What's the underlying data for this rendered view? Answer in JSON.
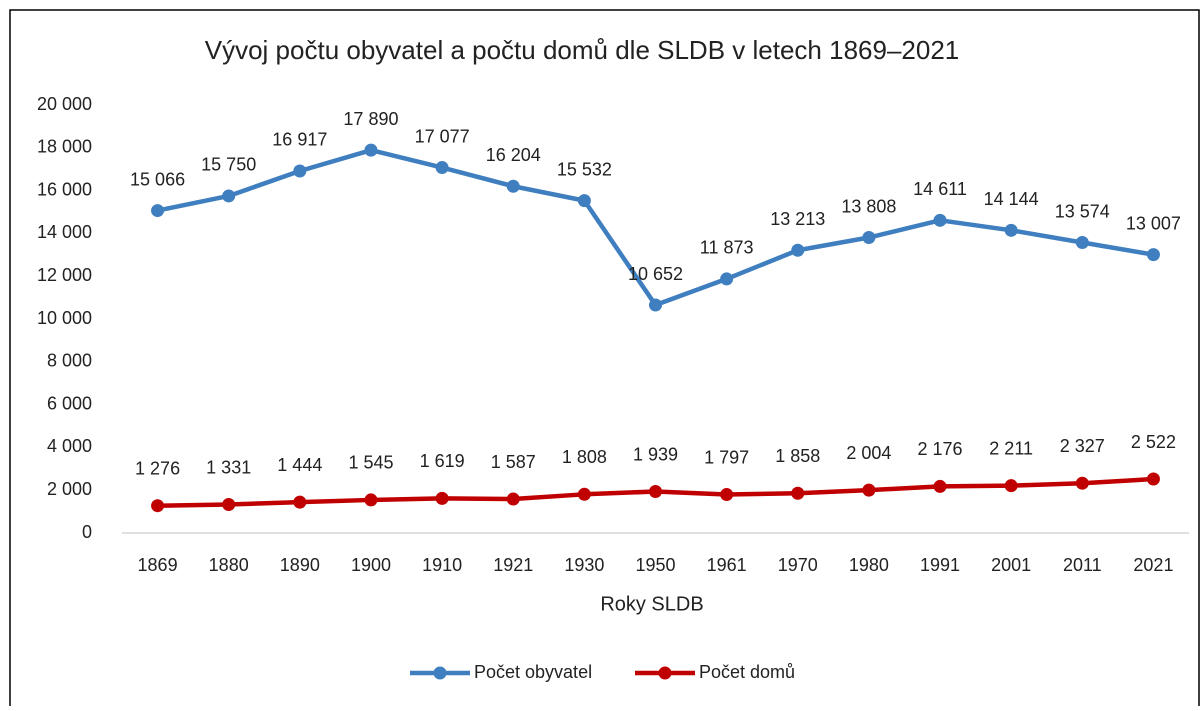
{
  "chart_data": {
    "type": "line",
    "title": "Vývoj počtu obyvatel a počtu domů dle SLDB v letech 1869–2021",
    "x_label": "Roky SLDB",
    "categories": [
      "1869",
      "1880",
      "1890",
      "1900",
      "1910",
      "1921",
      "1930",
      "1950",
      "1961",
      "1970",
      "1980",
      "1991",
      "2001",
      "2011",
      "2021"
    ],
    "series": [
      {
        "name": "Počet obyvatel",
        "color": "#3f7fc0",
        "values": [
          15066,
          15750,
          16917,
          17890,
          17077,
          16204,
          15532,
          10652,
          11873,
          13213,
          13808,
          14611,
          14144,
          13574,
          13007
        ],
        "value_labels": [
          "15 066",
          "15 750",
          "16 917",
          "17 890",
          "17 077",
          "16 204",
          "15 532",
          "10 652",
          "11 873",
          "13 213",
          "13 808",
          "14 611",
          "14 144",
          "13 574",
          "13 007"
        ]
      },
      {
        "name": "Počet domů",
        "color": "#c00000",
        "values": [
          1276,
          1331,
          1444,
          1545,
          1619,
          1587,
          1808,
          1939,
          1797,
          1858,
          2004,
          2176,
          2211,
          2327,
          2522
        ],
        "value_labels": [
          "1 276",
          "1 331",
          "1 444",
          "1 545",
          "1 619",
          "1 587",
          "1 808",
          "1 939",
          "1 797",
          "1 858",
          "2 004",
          "2 176",
          "2 211",
          "2 327",
          "2 522"
        ]
      }
    ],
    "ylim": [
      0,
      20000
    ],
    "yticks": [
      0,
      {
        "value": 2000,
        "label": "2 000"
      },
      {
        "value": 4000,
        "label": "4 000"
      },
      {
        "value": 6000,
        "label": "6 000"
      },
      {
        "value": 8000,
        "label": "8 000"
      },
      {
        "value": 10000,
        "label": "10 000"
      },
      {
        "value": 12000,
        "label": "12 000"
      },
      {
        "value": 14000,
        "label": "14 000"
      },
      {
        "value": 16000,
        "label": "16 000"
      },
      {
        "value": 18000,
        "label": "18 000"
      },
      {
        "value": 20000,
        "label": "20 000"
      }
    ],
    "grid": false,
    "legend": "bottom"
  }
}
